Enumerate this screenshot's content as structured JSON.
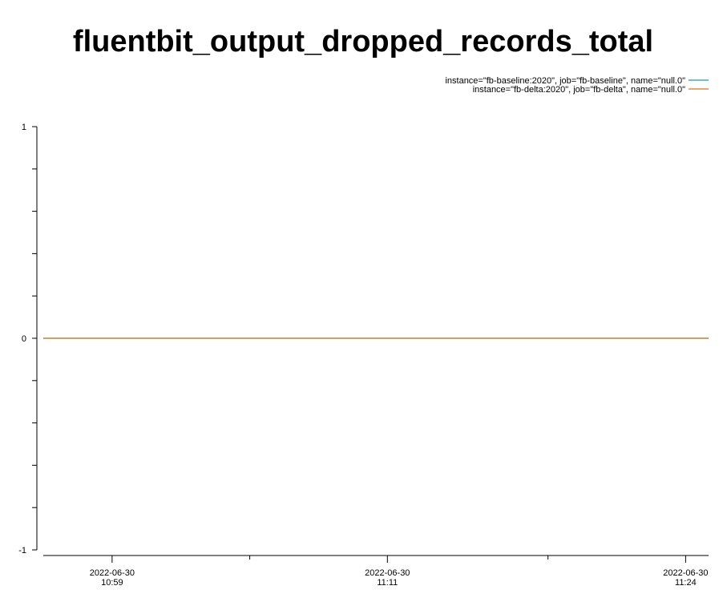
{
  "chart_data": {
    "type": "line",
    "title": "fluentbit_output_dropped_records_total",
    "xlabel": "",
    "ylabel": "",
    "ylim": [
      -1,
      1
    ],
    "y_ticks": [
      {
        "value": 1,
        "label": "1"
      },
      {
        "value": 0,
        "label": "0"
      },
      {
        "value": -1,
        "label": "-1"
      }
    ],
    "y_minor_step": 0.2,
    "x_range": [
      "2022-06-30 10:56",
      "2022-06-30 11:25"
    ],
    "x_ticks": [
      {
        "value": "2022-06-30 10:59",
        "date": "2022-06-30",
        "time": "10:59"
      },
      {
        "value": "2022-06-30 11:11",
        "date": "2022-06-30",
        "time": "11:11"
      },
      {
        "value": "2022-06-30 11:24",
        "date": "2022-06-30",
        "time": "11:24"
      }
    ],
    "x_minor_ticks": [
      "2022-06-30 11:05",
      "2022-06-30 11:18"
    ],
    "legend_position": "top-right",
    "grid": false,
    "series": [
      {
        "name": "instance=\"fb-baseline:2020\", job=\"fb-baseline\", name=\"null.0\"",
        "color": "#1f9aa8",
        "x": [
          "2022-06-30 10:56",
          "2022-06-30 11:25"
        ],
        "values": [
          0,
          0
        ]
      },
      {
        "name": "instance=\"fb-delta:2020\", job=\"fb-delta\", name=\"null.0\"",
        "color": "#d9731a",
        "x": [
          "2022-06-30 10:56",
          "2022-06-30 11:25"
        ],
        "values": [
          0,
          0
        ]
      }
    ]
  }
}
